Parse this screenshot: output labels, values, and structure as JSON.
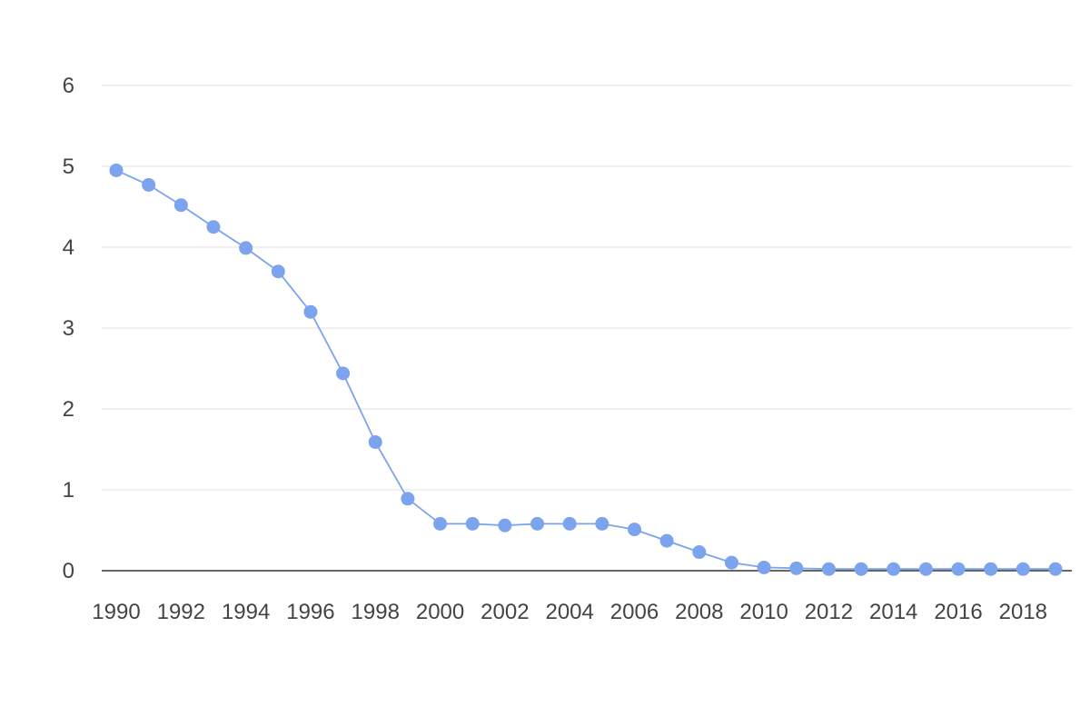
{
  "chart_data": {
    "type": "line",
    "title": "",
    "xlabel": "",
    "ylabel": "",
    "x": [
      1990,
      1991,
      1992,
      1993,
      1994,
      1995,
      1996,
      1997,
      1998,
      1999,
      2000,
      2001,
      2002,
      2003,
      2004,
      2005,
      2006,
      2007,
      2008,
      2009,
      2010,
      2011,
      2012,
      2013,
      2014,
      2015,
      2016,
      2017,
      2018,
      2019
    ],
    "x_tick_labels": [
      "1990",
      "1992",
      "1994",
      "1996",
      "1998",
      "2000",
      "2002",
      "2004",
      "2006",
      "2008",
      "2010",
      "2012",
      "2014",
      "2016",
      "2018"
    ],
    "x_ticks": [
      1990,
      1992,
      1994,
      1996,
      1998,
      2000,
      2002,
      2004,
      2006,
      2008,
      2010,
      2012,
      2014,
      2016,
      2018
    ],
    "y_tick_labels": [
      "0",
      "1",
      "2",
      "3",
      "4",
      "5",
      "6"
    ],
    "y_ticks": [
      0,
      1,
      2,
      3,
      4,
      5,
      6
    ],
    "ylim": [
      0,
      6
    ],
    "xlim": [
      1990,
      2019
    ],
    "grid": true,
    "series": [
      {
        "color": "#7ba3ee",
        "values": [
          4.95,
          4.77,
          4.52,
          4.25,
          3.99,
          3.7,
          3.2,
          2.44,
          1.59,
          0.89,
          0.58,
          0.58,
          0.56,
          0.58,
          0.58,
          0.58,
          0.51,
          0.37,
          0.23,
          0.1,
          0.04,
          0.03,
          0.02,
          0.02,
          0.02,
          0.02,
          0.02,
          0.02,
          0.02,
          0.02
        ]
      }
    ]
  }
}
